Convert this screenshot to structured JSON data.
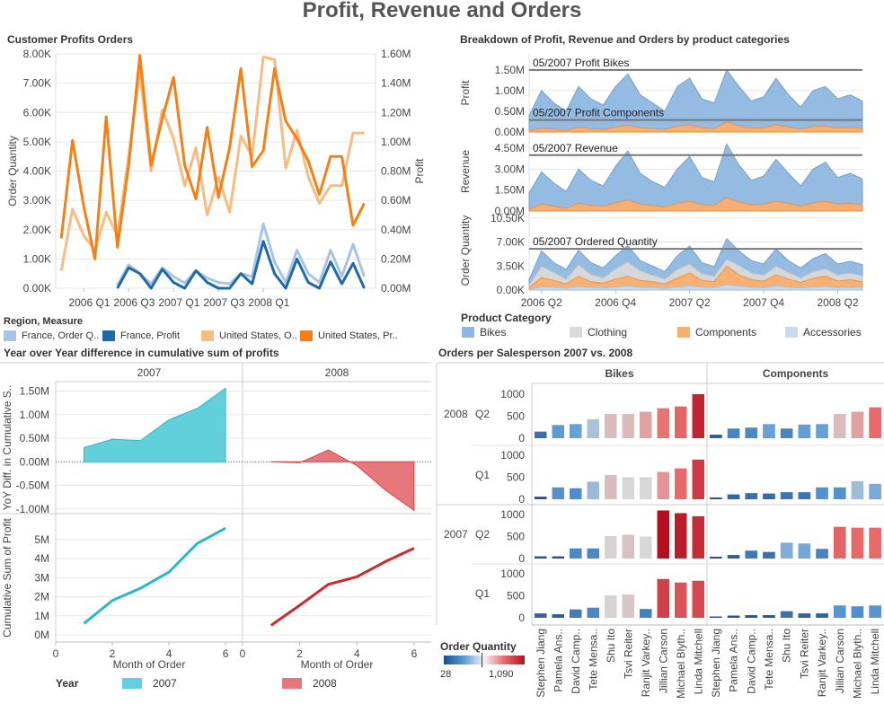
{
  "title": "Profit, Revenue and Orders",
  "panels": {
    "customer": "Customer Profits Orders",
    "breakdown": "Breakdown of Profit, Revenue and Orders by product categories",
    "yoy": "Year over Year difference in cumulative sum of profits",
    "salesperson": "Orders per Salesperson 2007 vs. 2008"
  },
  "legends": {
    "region_measure": {
      "title": "Region, Measure",
      "items": [
        {
          "label": "France, Order Q..",
          "color": "#a8c4e4"
        },
        {
          "label": "France, Profit",
          "color": "#1f69ab"
        },
        {
          "label": "United States, O..",
          "color": "#f8bb82"
        },
        {
          "label": "United States, Pr..",
          "color": "#f57f17"
        }
      ]
    },
    "product_category": {
      "title": "Product Category",
      "items": [
        {
          "label": "Bikes",
          "color": "#8fb8e0"
        },
        {
          "label": "Clothing",
          "color": "#d9d9d9"
        },
        {
          "label": "Components",
          "color": "#fbae6e"
        },
        {
          "label": "Accessories",
          "color": "#c5dcef"
        }
      ]
    },
    "year": {
      "title": "Year",
      "items": [
        {
          "label": "2007",
          "color": "#62d0dc"
        },
        {
          "label": "2008",
          "color": "#e6777a"
        }
      ]
    },
    "order_quantity": {
      "title": "Order Quantity",
      "min_label": "28",
      "max_label": "1,090"
    }
  },
  "chart_data": [
    {
      "type": "line",
      "id": "customer",
      "xticks": [
        "2006 Q1",
        "2006 Q3",
        "2007 Q1",
        "2007 Q3",
        "2008 Q1"
      ],
      "ylabel": "Order Quantity",
      "y2label": "Profit",
      "yticks": [
        "0.00K",
        "1.00K",
        "2.00K",
        "3.00K",
        "4.00K",
        "5.00K",
        "6.00K",
        "7.00K",
        "8.00K"
      ],
      "y2ticks": [
        "0.00M",
        "0.20M",
        "0.40M",
        "0.60M",
        "0.80M",
        "1.00M",
        "1.20M",
        "1.40M",
        "1.60M"
      ],
      "ylim": [
        0,
        8000
      ],
      "y2lim": [
        0,
        1600000
      ],
      "series": [
        {
          "name": "France, Order Q..",
          "axis": "left",
          "color": "#a8c4e4",
          "x": [
            5,
            6,
            7,
            8,
            9,
            10,
            11,
            12,
            13,
            14,
            15,
            16,
            17,
            18,
            19,
            20,
            21,
            22,
            23,
            24,
            25,
            26,
            27
          ],
          "values": [
            100,
            800,
            500,
            150,
            700,
            400,
            180,
            600,
            350,
            200,
            150,
            500,
            400,
            2200,
            900,
            200,
            1300,
            500,
            200,
            1300,
            400,
            1500,
            400
          ]
        },
        {
          "name": "France, Profit",
          "axis": "right",
          "color": "#1f69ab",
          "x": [
            5,
            6,
            7,
            8,
            9,
            10,
            11,
            12,
            13,
            14,
            15,
            16,
            17,
            18,
            19,
            20,
            21,
            22,
            23,
            24,
            25,
            26,
            27
          ],
          "values": [
            0,
            140000,
            100000,
            0,
            130000,
            40000,
            0,
            120000,
            40000,
            0,
            0,
            100000,
            30000,
            320000,
            100000,
            0,
            200000,
            40000,
            0,
            180000,
            30000,
            170000,
            0
          ]
        },
        {
          "name": "United States, O..",
          "axis": "left",
          "color": "#f8bb82",
          "x": [
            0,
            1,
            2,
            3,
            4,
            5,
            6,
            7,
            8,
            9,
            10,
            11,
            12,
            13,
            14,
            15,
            16,
            17,
            18,
            19,
            20,
            21,
            22,
            23,
            24,
            25,
            26,
            27
          ],
          "values": [
            600,
            2700,
            1800,
            1300,
            2600,
            1800,
            4500,
            7400,
            4000,
            6100,
            5100,
            3500,
            4800,
            2500,
            3800,
            2600,
            5200,
            4500,
            7900,
            7800,
            4100,
            5400,
            3800,
            2900,
            3500,
            3500,
            5300,
            5300
          ]
        },
        {
          "name": "United States, Pr..",
          "axis": "right",
          "color": "#f57f17",
          "x": [
            0,
            1,
            2,
            3,
            4,
            5,
            6,
            7,
            8,
            9,
            10,
            11,
            12,
            13,
            14,
            15,
            16,
            17,
            18,
            19,
            20,
            21,
            22,
            23,
            24,
            25,
            26,
            27
          ],
          "values": [
            340000,
            1010000,
            560000,
            200000,
            1170000,
            280000,
            840000,
            1590000,
            840000,
            1160000,
            1440000,
            840000,
            610000,
            1100000,
            620000,
            960000,
            1500000,
            830000,
            940000,
            1500000,
            1140000,
            1020000,
            870000,
            640000,
            900000,
            900000,
            430000,
            580000
          ]
        }
      ]
    },
    {
      "type": "area",
      "id": "breakdown",
      "xticks": [
        "2006 Q2",
        "2006 Q4",
        "2007 Q2",
        "2007 Q4",
        "2008 Q2"
      ],
      "rows": [
        {
          "ylabel": "Profit",
          "yticks": [
            "0.00M",
            "0.50M",
            "1.00M",
            "1.50M"
          ],
          "ylim": [
            0,
            1800000
          ],
          "reference_lines": [
            {
              "label": "05/2007 Profit Bikes",
              "value": 1500000
            },
            {
              "label": "05/2007 Profit Components",
              "value": 290000
            }
          ],
          "series": [
            {
              "name": "Bikes",
              "values": [
                400000,
                1000000,
                700000,
                500000,
                1100000,
                800000,
                650000,
                1100000,
                1400000,
                900000,
                700000,
                500000,
                1100000,
                1300000,
                800000,
                700000,
                1500000,
                1100000,
                750000,
                850000,
                1300000,
                900000,
                600000,
                1000000,
                1100000,
                800000,
                900000,
                750000
              ]
            },
            {
              "name": "Components",
              "values": [
                30000,
                90000,
                70000,
                40000,
                120000,
                80000,
                60000,
                120000,
                160000,
                100000,
                80000,
                60000,
                150000,
                180000,
                100000,
                80000,
                240000,
                150000,
                90000,
                100000,
                180000,
                120000,
                70000,
                130000,
                150000,
                100000,
                120000,
                90000
              ]
            }
          ]
        },
        {
          "ylabel": "Revenue",
          "yticks": [
            "0.00M",
            "1.50M",
            "3.00M",
            "4.50M"
          ],
          "ylim": [
            0,
            5400000
          ],
          "reference_lines": [
            {
              "label": "05/2007 Revenue",
              "value": 4000000
            }
          ],
          "series": [
            {
              "name": "Bikes",
              "values": [
                1300000,
                2800000,
                2000000,
                1400000,
                3000000,
                2200000,
                1800000,
                3200000,
                4300000,
                2700000,
                2100000,
                1700000,
                3000000,
                3900000,
                2400000,
                2100000,
                4800000,
                3300000,
                2200000,
                2500000,
                3700000,
                2700000,
                1800000,
                3000000,
                3500000,
                2400000,
                2700000,
                2300000
              ]
            },
            {
              "name": "Components",
              "values": [
                120000,
                500000,
                350000,
                200000,
                550000,
                400000,
                350000,
                600000,
                800000,
                500000,
                400000,
                300000,
                550000,
                700000,
                450000,
                400000,
                950000,
                650000,
                450000,
                500000,
                700000,
                550000,
                350000,
                600000,
                700000,
                500000,
                550000,
                450000
              ]
            }
          ]
        },
        {
          "ylabel": "Order Quantity",
          "yticks": [
            "0.00K",
            "3.50K",
            "7.00K",
            "10.50K"
          ],
          "ylim": [
            0,
            11000
          ],
          "reference_lines": [
            {
              "label": "05/2007 Ordered Quantity",
              "value": 6000
            }
          ],
          "series": [
            {
              "name": "Bikes",
              "values": [
                1500,
                5700,
                4000,
                3000,
                5800,
                4000,
                3200,
                5000,
                6500,
                4300,
                3500,
                2700,
                5000,
                6400,
                4000,
                3400,
                7500,
                5700,
                4300,
                3800,
                6000,
                4300,
                3200,
                4600,
                5300,
                3800,
                4200,
                3700
              ]
            },
            {
              "name": "Clothing",
              "values": [
                800,
                3500,
                2600,
                1600,
                3700,
                2300,
                1800,
                3100,
                4100,
                2800,
                2200,
                1600,
                3000,
                3800,
                2400,
                2000,
                4500,
                3600,
                2500,
                2200,
                3500,
                2600,
                1800,
                2700,
                3100,
                2200,
                2500,
                2100
              ]
            },
            {
              "name": "Components",
              "values": [
                400,
                1800,
                1400,
                900,
                2000,
                1200,
                1000,
                1600,
                2000,
                1400,
                1200,
                900,
                1700,
                2500,
                1400,
                1200,
                3500,
                2200,
                1500,
                1300,
                2200,
                1600,
                1100,
                1700,
                2000,
                1300,
                1500,
                1200
              ]
            },
            {
              "name": "Accessories",
              "values": [
                100,
                500,
                400,
                250,
                550,
                350,
                300,
                450,
                600,
                400,
                350,
                250,
                450,
                600,
                400,
                350,
                800,
                600,
                400,
                350,
                600,
                450,
                300,
                450,
                550,
                350,
                400,
                350
              ]
            }
          ]
        }
      ]
    },
    {
      "type": "area",
      "id": "yoy_diff",
      "facets": [
        "2007",
        "2008"
      ],
      "ylabel": "YoY Diff. in Cumulative S..",
      "yticks": [
        "-1.00M",
        "-0.50M",
        "0.00M",
        "0.50M",
        "1.00M",
        "1.50M"
      ],
      "ylim": [
        -1100000,
        1700000
      ],
      "x": [
        1,
        2,
        3,
        4,
        5,
        6
      ],
      "series": [
        {
          "name": "2007",
          "values": [
            300000,
            480000,
            450000,
            890000,
            1130000,
            1560000
          ]
        },
        {
          "name": "2008",
          "values": [
            0,
            -20000,
            250000,
            -80000,
            -600000,
            -1030000
          ]
        }
      ]
    },
    {
      "type": "line",
      "id": "cumulative",
      "facets": [
        "2007",
        "2008"
      ],
      "xlabel": "Month of Order",
      "ylabel": "Cumulative Sum of Profit",
      "xticks": [
        "0",
        "2",
        "4",
        "6"
      ],
      "yticks": [
        "0M",
        "1M",
        "2M",
        "3M",
        "4M",
        "5M"
      ],
      "ylim": [
        0,
        5800000
      ],
      "x": [
        1,
        2,
        3,
        4,
        5,
        6
      ],
      "series": [
        {
          "name": "2007",
          "values": [
            600000,
            1800000,
            2450000,
            3300000,
            4800000,
            5600000
          ]
        },
        {
          "name": "2008",
          "values": [
            500000,
            1550000,
            2650000,
            3050000,
            3850000,
            4550000
          ]
        }
      ]
    },
    {
      "type": "bar",
      "id": "salesperson",
      "columns": [
        "Bikes",
        "Components"
      ],
      "years": [
        "2008",
        "2007"
      ],
      "quarters": [
        "Q2",
        "Q1",
        "Q2",
        "Q1"
      ],
      "yticks": [
        "0",
        "500",
        "1000"
      ],
      "ylim": [
        0,
        1100
      ],
      "categories": [
        "Stephen Jiang",
        "Pamela Ans..",
        "David Camp..",
        "Tete Mensa..",
        "Shu Ito",
        "Tsvi Reiter",
        "Ranjit Varkey..",
        "Jillian Carson",
        "Michael Blyth..",
        "Linda Mitchell"
      ],
      "rows": [
        {
          "label": "2008 Q2",
          "bikes": [
            150,
            300,
            320,
            430,
            550,
            550,
            600,
            680,
            720,
            1000
          ],
          "components": [
            80,
            220,
            240,
            320,
            220,
            310,
            320,
            550,
            600,
            700
          ]
        },
        {
          "label": "2008 Q1",
          "bikes": [
            60,
            270,
            250,
            400,
            550,
            500,
            500,
            620,
            700,
            900
          ],
          "components": [
            40,
            110,
            140,
            130,
            160,
            160,
            270,
            270,
            410,
            350
          ]
        },
        {
          "label": "2007 Q2",
          "bikes": [
            50,
            50,
            230,
            230,
            510,
            540,
            500,
            1090,
            1030,
            960
          ],
          "components": [
            40,
            80,
            180,
            150,
            360,
            340,
            220,
            720,
            700,
            700
          ]
        },
        {
          "label": "2007 Q1",
          "bikes": [
            100,
            80,
            190,
            230,
            510,
            530,
            200,
            880,
            800,
            840
          ],
          "components": [
            30,
            50,
            60,
            60,
            150,
            100,
            100,
            280,
            260,
            280
          ]
        }
      ]
    }
  ]
}
